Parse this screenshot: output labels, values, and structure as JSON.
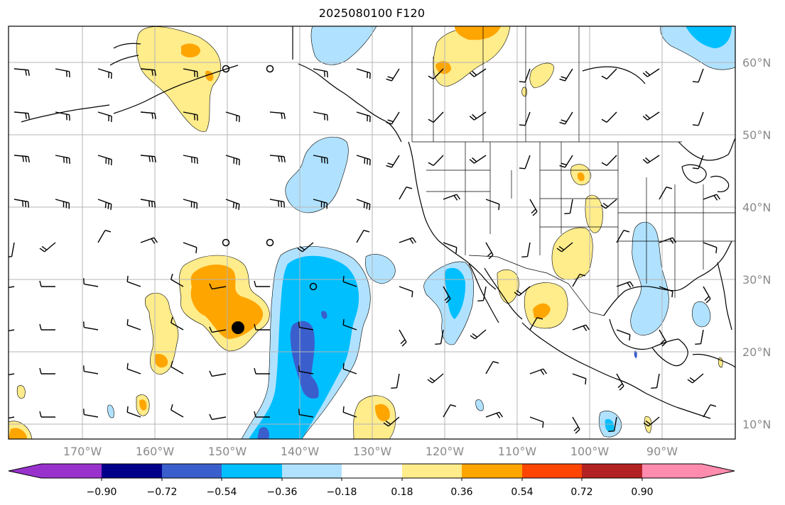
{
  "title": "2025080100 F120",
  "lat_labels": [
    "60°N",
    "50°N",
    "40°N",
    "30°N",
    "20°N",
    "10°N"
  ],
  "lon_labels": [
    "170°W",
    "160°W",
    "150°W",
    "140°W",
    "130°W",
    "120°W",
    "110°W",
    "100°W",
    "90°W"
  ],
  "colorbar": {
    "colors": [
      "#9932cc",
      "#00008b",
      "#3a5fcd",
      "#00bfff",
      "#b0e2ff",
      "#ffffff",
      "#ffec8b",
      "#ffa500",
      "#ff4500",
      "#b22222",
      "#ff8bae"
    ],
    "tick_labels": [
      "−0.90",
      "−0.72",
      "−0.54",
      "−0.36",
      "−0.18",
      "0.18",
      "0.36",
      "0.54",
      "0.72",
      "0.90"
    ]
  }
}
